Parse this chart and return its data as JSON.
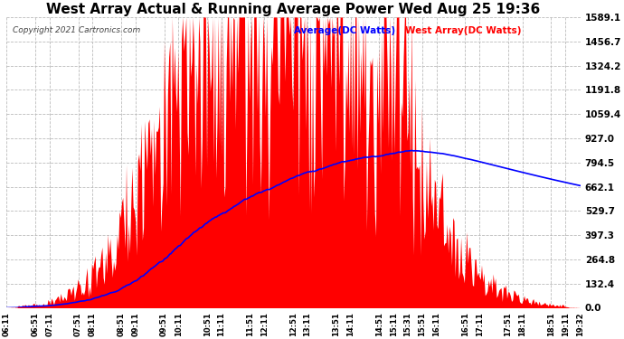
{
  "title": "West Array Actual & Running Average Power Wed Aug 25 19:36",
  "copyright": "Copyright 2021 Cartronics.com",
  "legend_avg": "Average(DC Watts)",
  "legend_west": "West Array(DC Watts)",
  "yticks": [
    0.0,
    132.4,
    264.8,
    397.3,
    529.7,
    662.1,
    794.5,
    927.0,
    1059.4,
    1191.8,
    1324.2,
    1456.7,
    1589.1
  ],
  "ymax": 1589.1,
  "ymin": 0.0,
  "fill_color": "#FF0000",
  "avg_color": "#0000FF",
  "title_color": "#000000",
  "copyright_color": "#000000",
  "legend_avg_color": "#0000FF",
  "legend_west_color": "#FF0000",
  "bg_color": "#FFFFFF",
  "grid_color": "#BBBBBB",
  "xtick_labels": [
    "06:11",
    "06:51",
    "07:11",
    "07:51",
    "08:11",
    "08:51",
    "09:11",
    "09:51",
    "10:11",
    "10:51",
    "11:11",
    "11:51",
    "12:11",
    "12:51",
    "13:11",
    "13:51",
    "14:11",
    "14:51",
    "15:11",
    "15:31",
    "15:51",
    "16:11",
    "16:51",
    "17:11",
    "17:51",
    "18:11",
    "18:51",
    "19:11",
    "19:32"
  ],
  "figwidth": 6.9,
  "figheight": 3.75,
  "dpi": 100
}
